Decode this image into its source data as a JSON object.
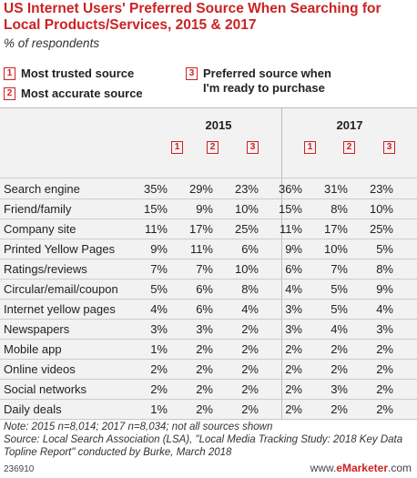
{
  "chart_data": {
    "type": "table",
    "title": "US Internet Users' Preferred Source When Searching for Local Products/Services, 2015 & 2017",
    "subtitle": "% of respondents",
    "legend": [
      {
        "key": "1",
        "label": "Most trusted source"
      },
      {
        "key": "2",
        "label": "Most accurate source"
      },
      {
        "key": "3",
        "label": "Preferred source when\nI'm ready to purchase"
      }
    ],
    "years": [
      "2015",
      "2017"
    ],
    "column_keys": [
      "1",
      "2",
      "3"
    ],
    "rows": [
      {
        "label": "Search engine",
        "v2015": [
          "35%",
          "29%",
          "23%"
        ],
        "v2017": [
          "36%",
          "31%",
          "23%"
        ]
      },
      {
        "label": "Friend/family",
        "v2015": [
          "15%",
          "9%",
          "10%"
        ],
        "v2017": [
          "15%",
          "8%",
          "10%"
        ]
      },
      {
        "label": "Company site",
        "v2015": [
          "11%",
          "17%",
          "25%"
        ],
        "v2017": [
          "11%",
          "17%",
          "25%"
        ]
      },
      {
        "label": "Printed Yellow Pages",
        "v2015": [
          "9%",
          "11%",
          "6%"
        ],
        "v2017": [
          "9%",
          "10%",
          "5%"
        ]
      },
      {
        "label": "Ratings/reviews",
        "v2015": [
          "7%",
          "7%",
          "10%"
        ],
        "v2017": [
          "6%",
          "7%",
          "8%"
        ]
      },
      {
        "label": "Circular/email/coupon",
        "v2015": [
          "5%",
          "6%",
          "8%"
        ],
        "v2017": [
          "4%",
          "5%",
          "9%"
        ]
      },
      {
        "label": "Internet yellow pages",
        "v2015": [
          "4%",
          "6%",
          "4%"
        ],
        "v2017": [
          "3%",
          "5%",
          "4%"
        ]
      },
      {
        "label": "Newspapers",
        "v2015": [
          "3%",
          "3%",
          "2%"
        ],
        "v2017": [
          "3%",
          "4%",
          "3%"
        ]
      },
      {
        "label": "Mobile app",
        "v2015": [
          "1%",
          "2%",
          "2%"
        ],
        "v2017": [
          "2%",
          "2%",
          "2%"
        ]
      },
      {
        "label": "Online videos",
        "v2015": [
          "2%",
          "2%",
          "2%"
        ],
        "v2017": [
          "2%",
          "2%",
          "2%"
        ]
      },
      {
        "label": "Social networks",
        "v2015": [
          "2%",
          "2%",
          "2%"
        ],
        "v2017": [
          "2%",
          "3%",
          "2%"
        ]
      },
      {
        "label": "Daily deals",
        "v2015": [
          "1%",
          "2%",
          "2%"
        ],
        "v2017": [
          "2%",
          "2%",
          "2%"
        ]
      }
    ]
  },
  "note": "Note: 2015 n=8,014; 2017 n=8,034; not all sources shown\nSource: Local Search Association (LSA), \"Local Media Tracking Study: 2018 Key Data Topline Report\" conducted by Burke, March 2018",
  "footer": {
    "id": "236910",
    "brand_prefix": "www.",
    "brand_name": "eMarketer",
    "brand_suffix": ".com"
  },
  "colors": {
    "accent": "#cc2222",
    "table_bg": "#f2f2f2"
  }
}
